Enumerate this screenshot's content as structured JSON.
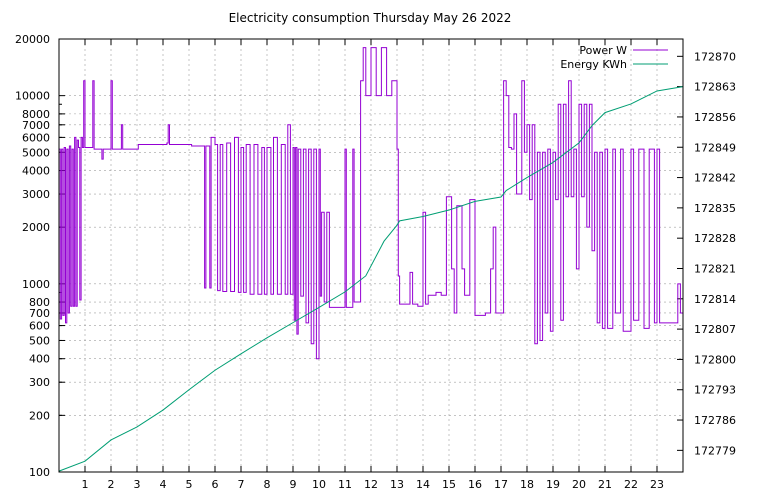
{
  "chart_data": {
    "type": "line",
    "title": "Electricity consumption Thursday May 26 2022",
    "x": {
      "range": [
        0,
        24
      ],
      "ticks": [
        1,
        2,
        3,
        4,
        5,
        6,
        7,
        8,
        9,
        10,
        11,
        12,
        13,
        14,
        15,
        16,
        17,
        18,
        19,
        20,
        21,
        22,
        23
      ]
    },
    "y_left": {
      "scale": "log",
      "range": [
        100,
        20000
      ],
      "ticks": [
        100,
        200,
        300,
        400,
        500,
        600,
        700,
        800,
        1000,
        2000,
        3000,
        4000,
        5000,
        6000,
        7000,
        8000,
        10000,
        20000
      ]
    },
    "y_right": {
      "range": [
        172774,
        172874
      ],
      "ticks": [
        172779,
        172786,
        172793,
        172800,
        172807,
        172814,
        172821,
        172828,
        172835,
        172842,
        172849,
        172856,
        172863,
        172870
      ]
    },
    "grid": true,
    "legend_placement": "top-right",
    "legend": [
      {
        "name": "Power W",
        "color": "#9400D3"
      },
      {
        "name": "Energy KWh",
        "color": "#009E73"
      }
    ],
    "series": [
      {
        "name": "Power W",
        "axis": "y_left",
        "color": "#9400D3",
        "points": [
          [
            0.0,
            5200
          ],
          [
            0.05,
            650
          ],
          [
            0.1,
            5200
          ],
          [
            0.15,
            680
          ],
          [
            0.2,
            5300
          ],
          [
            0.25,
            620
          ],
          [
            0.3,
            5200
          ],
          [
            0.35,
            700
          ],
          [
            0.4,
            5400
          ],
          [
            0.45,
            760
          ],
          [
            0.5,
            5200
          ],
          [
            0.55,
            760
          ],
          [
            0.6,
            6000
          ],
          [
            0.65,
            760
          ],
          [
            0.7,
            5800
          ],
          [
            0.75,
            5300
          ],
          [
            0.8,
            820
          ],
          [
            0.85,
            6000
          ],
          [
            0.9,
            5300
          ],
          [
            0.95,
            12000
          ],
          [
            1.0,
            5300
          ],
          [
            1.3,
            12000
          ],
          [
            1.35,
            5200
          ],
          [
            1.6,
            5200
          ],
          [
            1.65,
            4600
          ],
          [
            1.7,
            5200
          ],
          [
            2.0,
            12000
          ],
          [
            2.05,
            5200
          ],
          [
            2.4,
            7000
          ],
          [
            2.45,
            5200
          ],
          [
            3.0,
            5200
          ],
          [
            3.05,
            5500
          ],
          [
            4.0,
            5500
          ],
          [
            4.15,
            5600
          ],
          [
            4.2,
            7000
          ],
          [
            4.25,
            5500
          ],
          [
            5.0,
            5500
          ],
          [
            5.1,
            5400
          ],
          [
            5.5,
            5400
          ],
          [
            5.6,
            950
          ],
          [
            5.65,
            5400
          ],
          [
            5.8,
            950
          ],
          [
            5.85,
            6000
          ],
          [
            6.0,
            5500
          ],
          [
            6.1,
            920
          ],
          [
            6.2,
            5500
          ],
          [
            6.3,
            910
          ],
          [
            6.45,
            5600
          ],
          [
            6.6,
            910
          ],
          [
            6.75,
            6000
          ],
          [
            6.9,
            900
          ],
          [
            7.0,
            5300
          ],
          [
            7.1,
            900
          ],
          [
            7.2,
            5500
          ],
          [
            7.35,
            880
          ],
          [
            7.5,
            5500
          ],
          [
            7.65,
            880
          ],
          [
            7.8,
            5300
          ],
          [
            7.9,
            880
          ],
          [
            8.0,
            5300
          ],
          [
            8.15,
            880
          ],
          [
            8.25,
            6000
          ],
          [
            8.4,
            880
          ],
          [
            8.55,
            5500
          ],
          [
            8.7,
            880
          ],
          [
            8.8,
            7000
          ],
          [
            8.9,
            880
          ],
          [
            9.0,
            5300
          ],
          [
            9.05,
            640
          ],
          [
            9.1,
            5300
          ],
          [
            9.15,
            540
          ],
          [
            9.2,
            5200
          ],
          [
            9.3,
            860
          ],
          [
            9.4,
            5200
          ],
          [
            9.5,
            620
          ],
          [
            9.6,
            5200
          ],
          [
            9.7,
            480
          ],
          [
            9.8,
            5200
          ],
          [
            9.9,
            400
          ],
          [
            10.0,
            5200
          ],
          [
            10.05,
            860
          ],
          [
            10.1,
            2400
          ],
          [
            10.2,
            800
          ],
          [
            10.3,
            2400
          ],
          [
            10.4,
            750
          ],
          [
            10.5,
            750
          ],
          [
            10.7,
            750
          ],
          [
            10.9,
            750
          ],
          [
            11.0,
            5200
          ],
          [
            11.05,
            750
          ],
          [
            11.3,
            5200
          ],
          [
            11.35,
            800
          ],
          [
            11.6,
            12000
          ],
          [
            11.7,
            18000
          ],
          [
            11.8,
            10000
          ],
          [
            12.0,
            18000
          ],
          [
            12.2,
            10000
          ],
          [
            12.4,
            18000
          ],
          [
            12.6,
            10000
          ],
          [
            12.8,
            12000
          ],
          [
            13.0,
            5200
          ],
          [
            13.05,
            1100
          ],
          [
            13.1,
            780
          ],
          [
            13.3,
            780
          ],
          [
            13.5,
            1150
          ],
          [
            13.6,
            780
          ],
          [
            13.8,
            760
          ],
          [
            14.0,
            2400
          ],
          [
            14.1,
            780
          ],
          [
            14.2,
            870
          ],
          [
            14.5,
            900
          ],
          [
            14.7,
            870
          ],
          [
            14.9,
            2900
          ],
          [
            15.0,
            2900
          ],
          [
            15.1,
            1200
          ],
          [
            15.2,
            700
          ],
          [
            15.3,
            2600
          ],
          [
            15.5,
            1200
          ],
          [
            15.6,
            870
          ],
          [
            15.8,
            2800
          ],
          [
            16.0,
            680
          ],
          [
            16.4,
            700
          ],
          [
            16.6,
            1200
          ],
          [
            16.7,
            2000
          ],
          [
            16.8,
            700
          ],
          [
            17.0,
            700
          ],
          [
            17.1,
            12000
          ],
          [
            17.2,
            10000
          ],
          [
            17.3,
            5300
          ],
          [
            17.4,
            5200
          ],
          [
            17.5,
            8000
          ],
          [
            17.6,
            3000
          ],
          [
            17.8,
            12000
          ],
          [
            17.9,
            5000
          ],
          [
            18.0,
            7000
          ],
          [
            18.1,
            2800
          ],
          [
            18.2,
            7000
          ],
          [
            18.3,
            480
          ],
          [
            18.4,
            5000
          ],
          [
            18.5,
            500
          ],
          [
            18.6,
            5000
          ],
          [
            18.7,
            700
          ],
          [
            18.8,
            5200
          ],
          [
            18.9,
            560
          ],
          [
            19.0,
            5000
          ],
          [
            19.1,
            2800
          ],
          [
            19.2,
            9000
          ],
          [
            19.3,
            640
          ],
          [
            19.4,
            9000
          ],
          [
            19.5,
            2900
          ],
          [
            19.6,
            12000
          ],
          [
            19.7,
            2900
          ],
          [
            19.8,
            5200
          ],
          [
            19.9,
            1200
          ],
          [
            20.0,
            9000
          ],
          [
            20.1,
            2900
          ],
          [
            20.2,
            9000
          ],
          [
            20.3,
            2000
          ],
          [
            20.4,
            9000
          ],
          [
            20.5,
            1500
          ],
          [
            20.6,
            5000
          ],
          [
            20.7,
            620
          ],
          [
            20.8,
            5000
          ],
          [
            20.9,
            580
          ],
          [
            21.0,
            5200
          ],
          [
            21.1,
            580
          ],
          [
            21.3,
            5200
          ],
          [
            21.4,
            700
          ],
          [
            21.6,
            5200
          ],
          [
            21.7,
            560
          ],
          [
            22.0,
            5200
          ],
          [
            22.1,
            640
          ],
          [
            22.3,
            5200
          ],
          [
            22.5,
            580
          ],
          [
            22.7,
            5200
          ],
          [
            22.9,
            620
          ],
          [
            23.0,
            5200
          ],
          [
            23.1,
            620
          ],
          [
            23.4,
            620
          ],
          [
            23.7,
            620
          ],
          [
            23.8,
            1000
          ],
          [
            23.9,
            700
          ],
          [
            24.0,
            2400
          ]
        ]
      },
      {
        "name": "Energy KWh",
        "axis": "y_right",
        "color": "#009E73",
        "points": [
          [
            0.0,
            172774.2
          ],
          [
            1.0,
            172776.5
          ],
          [
            2.0,
            172781.4
          ],
          [
            3.0,
            172784.4
          ],
          [
            4.0,
            172788.3
          ],
          [
            5.0,
            172793.0
          ],
          [
            6.0,
            172797.5
          ],
          [
            7.0,
            172801.3
          ],
          [
            8.0,
            172805.0
          ],
          [
            9.0,
            172808.5
          ],
          [
            10.0,
            172812.0
          ],
          [
            11.0,
            172815.6
          ],
          [
            11.8,
            172819.3
          ],
          [
            12.5,
            172827.3
          ],
          [
            13.0,
            172831.0
          ],
          [
            13.1,
            172832.0
          ],
          [
            14.0,
            172833.0
          ],
          [
            15.0,
            172834.5
          ],
          [
            16.0,
            172836.5
          ],
          [
            17.0,
            172837.5
          ],
          [
            17.2,
            172839.0
          ],
          [
            18.0,
            172842.0
          ],
          [
            19.0,
            172845.5
          ],
          [
            20.0,
            172850.0
          ],
          [
            20.5,
            172854.0
          ],
          [
            21.0,
            172857.0
          ],
          [
            22.0,
            172859.0
          ],
          [
            23.0,
            172862.0
          ],
          [
            24.0,
            172863.0
          ]
        ]
      }
    ]
  }
}
